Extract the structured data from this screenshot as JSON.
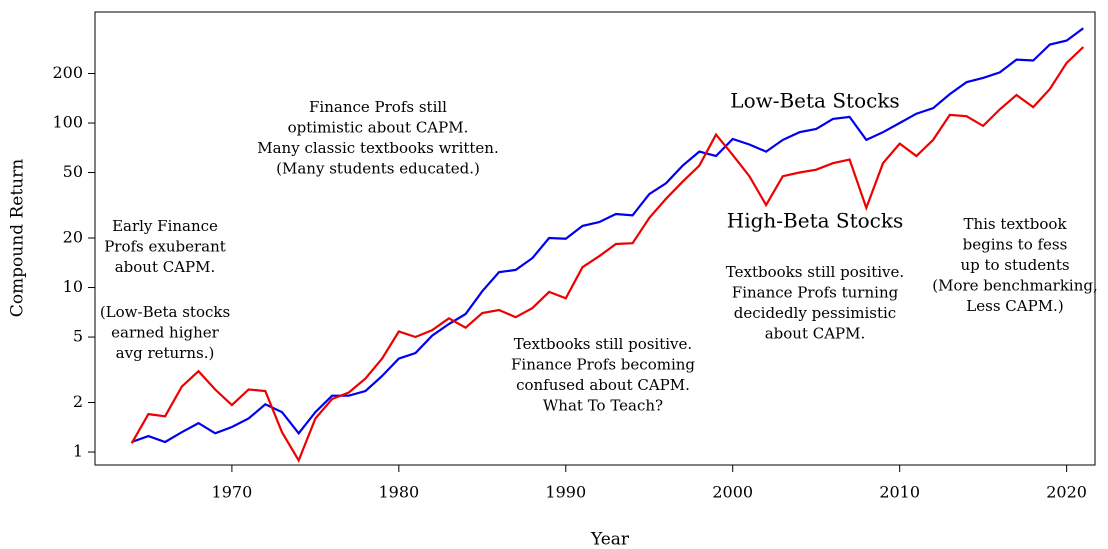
{
  "chart_data": {
    "type": "line",
    "x_label": "Year",
    "y_label": "Compound Return",
    "log_y": true,
    "x": [
      1964,
      1965,
      1966,
      1967,
      1968,
      1969,
      1970,
      1971,
      1972,
      1973,
      1974,
      1975,
      1976,
      1977,
      1978,
      1979,
      1980,
      1981,
      1982,
      1983,
      1984,
      1985,
      1986,
      1987,
      1988,
      1989,
      1990,
      1991,
      1992,
      1993,
      1994,
      1995,
      1996,
      1997,
      1998,
      1999,
      2000,
      2001,
      2002,
      2003,
      2004,
      2005,
      2006,
      2007,
      2008,
      2009,
      2010,
      2011,
      2012,
      2013,
      2014,
      2015,
      2016,
      2017,
      2018,
      2019,
      2020,
      2021
    ],
    "series": [
      {
        "name": "Low-Beta Stocks",
        "color": "#0000ee",
        "values": [
          1.15,
          1.25,
          1.15,
          1.32,
          1.5,
          1.3,
          1.42,
          1.6,
          1.95,
          1.75,
          1.3,
          1.75,
          2.2,
          2.2,
          2.35,
          2.9,
          3.7,
          4.0,
          5.1,
          6.0,
          6.9,
          9.5,
          12.4,
          12.8,
          15.1,
          20,
          19.8,
          23.7,
          25,
          28,
          27.5,
          37,
          43,
          55,
          67,
          63,
          80,
          74,
          67,
          79,
          88,
          92,
          106,
          109,
          79,
          88,
          100,
          114,
          123,
          150,
          177,
          188,
          203,
          243,
          240,
          300,
          317,
          377
        ]
      },
      {
        "name": "High-Beta Stocks",
        "color": "#ee0000",
        "values": [
          1.13,
          1.7,
          1.65,
          2.5,
          3.1,
          2.4,
          1.93,
          2.4,
          2.35,
          1.32,
          0.89,
          1.6,
          2.1,
          2.3,
          2.8,
          3.7,
          5.4,
          5.0,
          5.5,
          6.5,
          5.7,
          7.0,
          7.3,
          6.6,
          7.5,
          9.4,
          8.6,
          13.3,
          15.5,
          18.4,
          18.6,
          26.5,
          34.6,
          44,
          55,
          85,
          64,
          47.5,
          31.7,
          47.5,
          50,
          52,
          57,
          60,
          30.5,
          57,
          75,
          63,
          79,
          112,
          110,
          96,
          121,
          148,
          125,
          161,
          232,
          290
        ]
      }
    ],
    "xlim": [
      1961.8,
      2021.7
    ],
    "ylim": [
      0.834,
      473
    ],
    "xticks": [
      1970,
      1980,
      1990,
      2000,
      2010,
      2020
    ],
    "yticks": [
      1,
      2,
      5,
      10,
      20,
      50,
      100,
      200
    ],
    "annotations": [
      {
        "lines": [
          "Early Finance",
          "Profs exuberant",
          "about CAPM."
        ]
      },
      {
        "lines": [
          "(Low-Beta stocks",
          "earned higher",
          "avg returns.)"
        ]
      },
      {
        "lines": [
          "Finance Profs still",
          "optimistic about CAPM.",
          "Many classic textbooks written.",
          "(Many students educated.)"
        ]
      },
      {
        "lines": [
          "Textbooks still positive.",
          "Finance Profs becoming",
          "confused about CAPM.",
          "What To Teach?"
        ]
      },
      {
        "lines": [
          "Textbooks still positive.",
          "Finance Profs turning",
          "decidedly pessimistic",
          "about CAPM."
        ]
      },
      {
        "lines": [
          "This textbook",
          "begins to fess",
          "up to students",
          "(More benchmarking,",
          "Less CAPM.)"
        ]
      }
    ]
  }
}
